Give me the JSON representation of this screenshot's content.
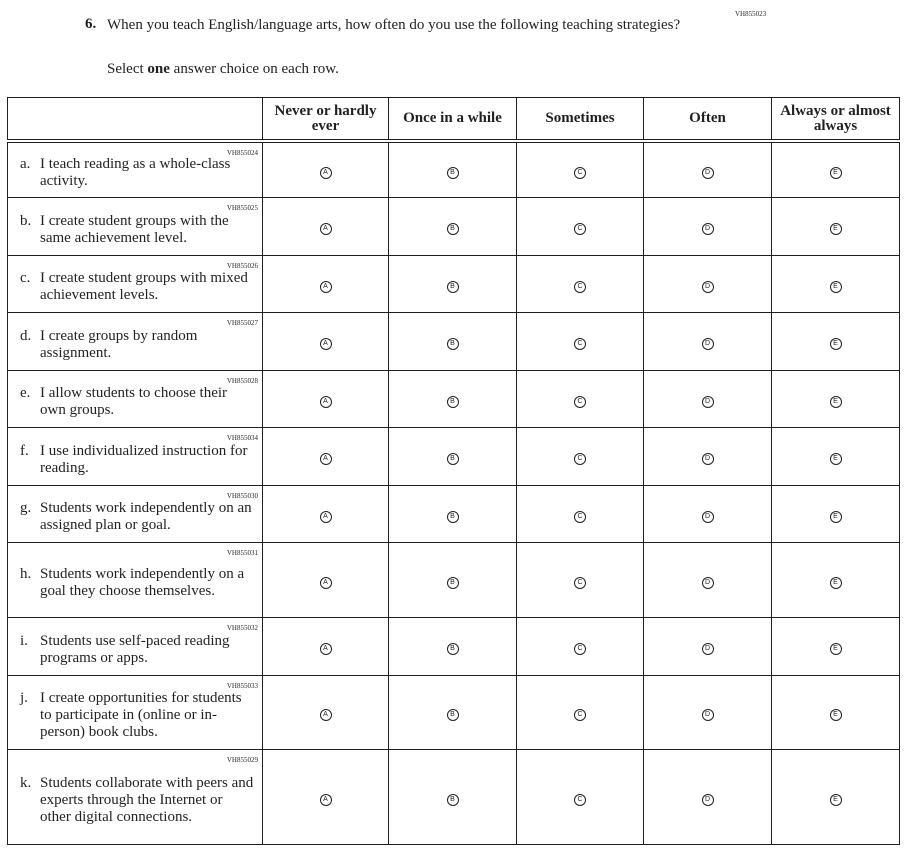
{
  "question": {
    "number": "6.",
    "text": "When you teach English/language arts, how often do you use the following teaching strategies?",
    "code": "VH855023",
    "instruction_pre": "Select ",
    "instruction_bold": "one",
    "instruction_post": " answer choice on each row."
  },
  "columns": [
    "Never or hardly ever",
    "Once in a while",
    "Sometimes",
    "Often",
    "Always or almost always"
  ],
  "bubble_letters": [
    "A",
    "B",
    "C",
    "D",
    "E"
  ],
  "rows": [
    {
      "label": "a.",
      "text": "I teach reading as a whole-class activity.",
      "code": "VH855024"
    },
    {
      "label": "b.",
      "text": "I create student groups with the same achievement level.",
      "code": "VH855025"
    },
    {
      "label": "c.",
      "text": "I create student groups with mixed achievement levels.",
      "code": "VH855026"
    },
    {
      "label": "d.",
      "text": "I create groups by random assignment.",
      "code": "VH855027"
    },
    {
      "label": "e.",
      "text": "I allow students to choose their own groups.",
      "code": "VH855028"
    },
    {
      "label": "f.",
      "text": "I use individualized instruction for reading.",
      "code": "VH855034"
    },
    {
      "label": "g.",
      "text": "Students work independently on an assigned plan or goal.",
      "code": "VH855030"
    },
    {
      "label": "h.",
      "text": "Students work independently on a goal they choose themselves.",
      "code": "VH855031"
    },
    {
      "label": "i.",
      "text": "Students use self-paced reading programs or apps.",
      "code": "VH855032"
    },
    {
      "label": "j.",
      "text": "I create opportunities for students to participate in (online or in-person) book clubs.",
      "code": "VH855033"
    },
    {
      "label": "k.",
      "text": "Students collaborate with peers and experts through the Internet or other digital connections.",
      "code": "VH855029"
    }
  ]
}
